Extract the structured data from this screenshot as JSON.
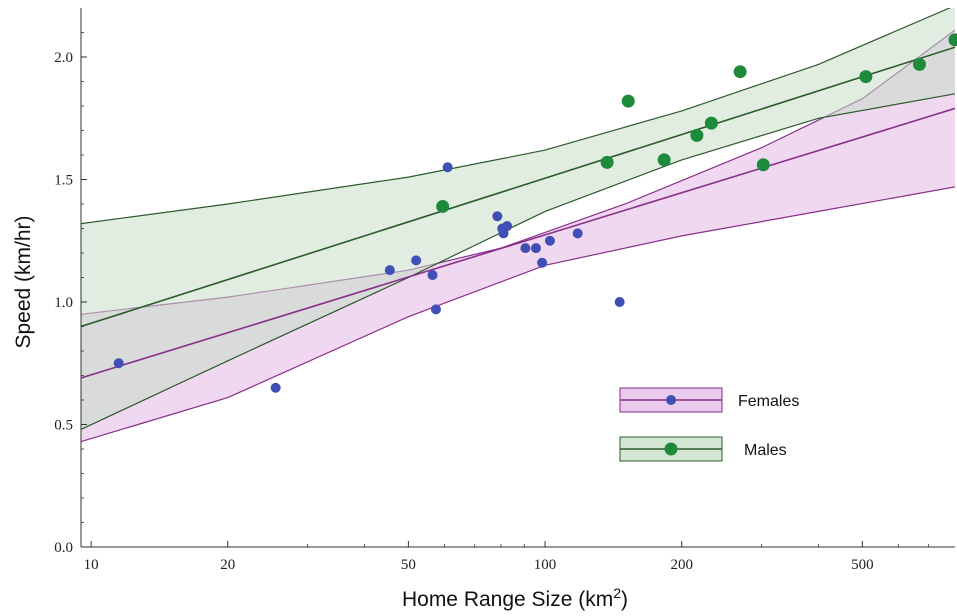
{
  "chart_data": {
    "type": "scatter",
    "xlabel": "Home Range Size (km",
    "xlabel_sup": "2",
    "xlabel_end": ")",
    "ylabel": "Speed (km/hr)",
    "x_scale": "log",
    "xlim": [
      9.5,
      800
    ],
    "ylim": [
      0,
      2.2
    ],
    "x_ticks": [
      10,
      20,
      50,
      100,
      200,
      500
    ],
    "x_tick_labels": [
      "10",
      "20",
      "50",
      "100",
      "200",
      "500"
    ],
    "y_ticks": [
      0.0,
      0.5,
      1.0,
      1.5,
      2.0
    ],
    "y_tick_labels": [
      "0.0",
      "0.5",
      "1.0",
      "1.5",
      "2.0"
    ],
    "grid": false,
    "legend_position": "lower-right",
    "series": [
      {
        "name": "Females",
        "color": "#3f4fb5",
        "line_color": "#8a2f8a",
        "band_color": "#e3b8e6",
        "points": [
          {
            "x": 11.5,
            "y": 0.75
          },
          {
            "x": 25.5,
            "y": 0.65
          },
          {
            "x": 45.5,
            "y": 1.13
          },
          {
            "x": 52,
            "y": 1.17
          },
          {
            "x": 56.5,
            "y": 1.11
          },
          {
            "x": 57.5,
            "y": 0.97
          },
          {
            "x": 61,
            "y": 1.55
          },
          {
            "x": 78.5,
            "y": 1.35
          },
          {
            "x": 80.5,
            "y": 1.3
          },
          {
            "x": 81,
            "y": 1.28
          },
          {
            "x": 82.5,
            "y": 1.31
          },
          {
            "x": 90.5,
            "y": 1.22
          },
          {
            "x": 95.5,
            "y": 1.22
          },
          {
            "x": 98.5,
            "y": 1.16
          },
          {
            "x": 102.5,
            "y": 1.25
          },
          {
            "x": 118,
            "y": 1.28
          },
          {
            "x": 146,
            "y": 1.0
          }
        ],
        "fit": {
          "x": [
            9.5,
            800
          ],
          "y": [
            0.69,
            1.79
          ]
        },
        "band_upper": [
          [
            9.5,
            0.95
          ],
          [
            20,
            1.02
          ],
          [
            50,
            1.13
          ],
          [
            80,
            1.22
          ],
          [
            150,
            1.4
          ],
          [
            300,
            1.63
          ],
          [
            500,
            1.83
          ],
          [
            800,
            2.11
          ]
        ],
        "band_lower": [
          [
            9.5,
            0.43
          ],
          [
            20,
            0.61
          ],
          [
            50,
            0.94
          ],
          [
            100,
            1.15
          ],
          [
            200,
            1.27
          ],
          [
            400,
            1.37
          ],
          [
            800,
            1.47
          ]
        ]
      },
      {
        "name": "Males",
        "color": "#1e8a3c",
        "line_color": "#2d5a2d",
        "band_color": "#c6dfc6",
        "points": [
          {
            "x": 59.5,
            "y": 1.39
          },
          {
            "x": 137,
            "y": 1.57
          },
          {
            "x": 152.5,
            "y": 1.82
          },
          {
            "x": 183,
            "y": 1.58
          },
          {
            "x": 216,
            "y": 1.68
          },
          {
            "x": 232.5,
            "y": 1.73
          },
          {
            "x": 269,
            "y": 1.94
          },
          {
            "x": 302.5,
            "y": 1.56
          },
          {
            "x": 509,
            "y": 1.92
          },
          {
            "x": 668,
            "y": 1.97
          },
          {
            "x": 800,
            "y": 2.07
          }
        ],
        "fit": {
          "x": [
            9.5,
            800
          ],
          "y": [
            0.9,
            2.04
          ]
        },
        "band_upper": [
          [
            9.5,
            1.32
          ],
          [
            20,
            1.4
          ],
          [
            50,
            1.51
          ],
          [
            100,
            1.62
          ],
          [
            200,
            1.78
          ],
          [
            400,
            1.97
          ],
          [
            800,
            2.21
          ]
        ],
        "band_lower": [
          [
            9.5,
            0.48
          ],
          [
            20,
            0.76
          ],
          [
            50,
            1.1
          ],
          [
            100,
            1.37
          ],
          [
            200,
            1.58
          ],
          [
            400,
            1.75
          ],
          [
            800,
            1.85
          ]
        ]
      }
    ]
  }
}
